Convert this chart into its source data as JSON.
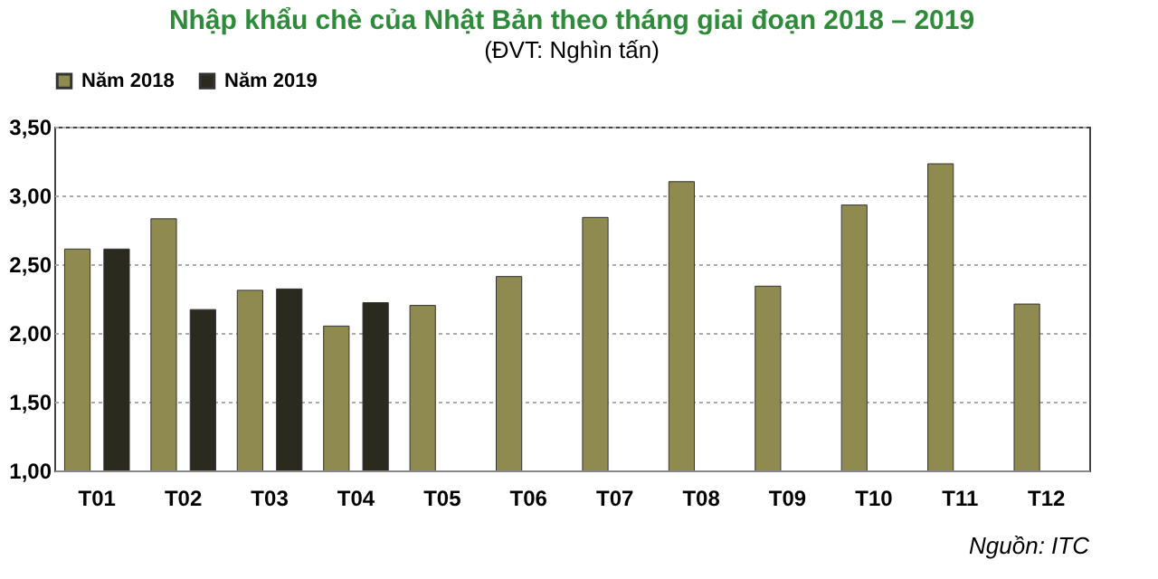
{
  "chart_data": {
    "type": "bar",
    "title": "Nhập khẩu chè của Nhật Bản theo tháng giai đoạn 2018 – 2019",
    "subtitle": "(ĐVT: Nghìn tấn)",
    "categories": [
      "T01",
      "T02",
      "T03",
      "T04",
      "T05",
      "T06",
      "T07",
      "T08",
      "T09",
      "T10",
      "T11",
      "T12"
    ],
    "series": [
      {
        "name": "Năm 2018",
        "color": "#8f8a4f",
        "values": [
          2.61,
          2.83,
          2.31,
          2.05,
          2.2,
          2.41,
          2.84,
          3.1,
          2.34,
          2.93,
          3.23,
          2.21
        ]
      },
      {
        "name": "Năm 2019",
        "color": "#2a2a1e",
        "values": [
          2.61,
          2.17,
          2.32,
          2.22,
          null,
          null,
          null,
          null,
          null,
          null,
          null,
          null
        ]
      }
    ],
    "ylim": [
      1.0,
      3.5
    ],
    "yticks": [
      {
        "value": 1.0,
        "label": "1,00"
      },
      {
        "value": 1.5,
        "label": "1,50"
      },
      {
        "value": 2.0,
        "label": "2,00"
      },
      {
        "value": 2.5,
        "label": "2,50"
      },
      {
        "value": 3.0,
        "label": "3,00"
      },
      {
        "value": 3.5,
        "label": "3,50"
      }
    ],
    "grid": "y",
    "legend": "top",
    "annotations": [
      "Nguồn: ITC"
    ]
  }
}
